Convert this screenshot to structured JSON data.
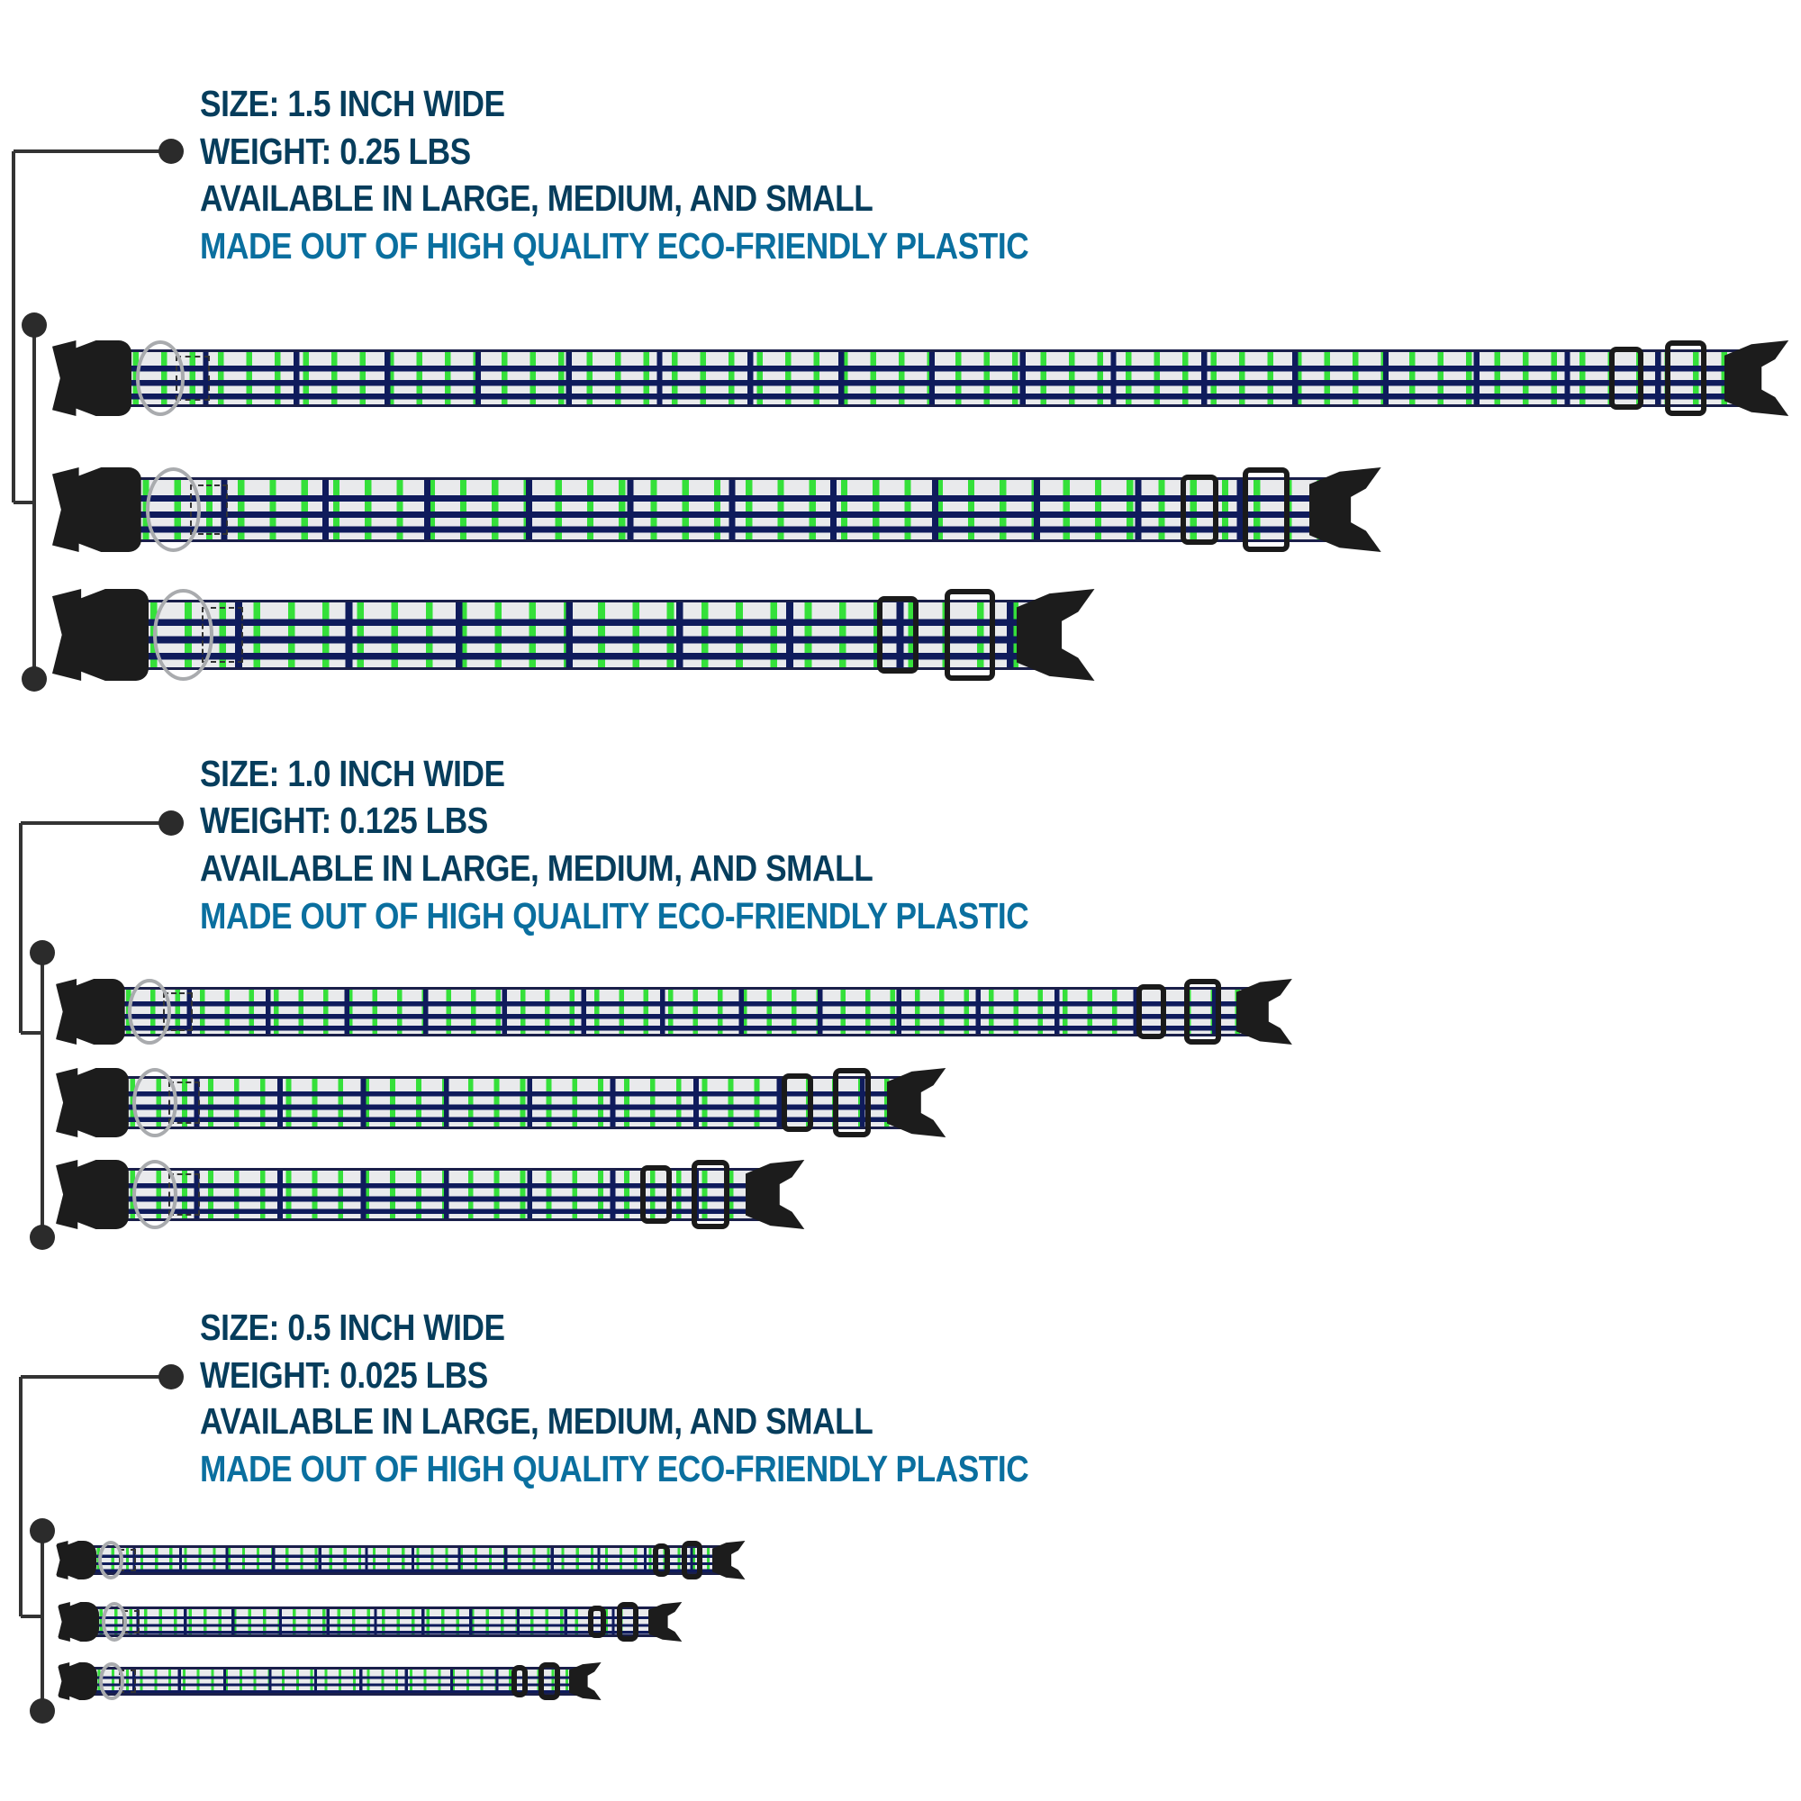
{
  "colors": {
    "heading": "#063d5c",
    "accent": "#0a6f9f",
    "strap_green": "#35e03a",
    "strap_navy": "#0f1b5c",
    "buckle": "#1c1c1c"
  },
  "sections": [
    {
      "lines": [
        "SIZE: 1.5 INCH WIDE",
        "WEIGHT: 0.25 LBS",
        "AVAILABLE IN LARGE, MEDIUM, AND SMALL",
        "MADE OUT OF HIGH QUALITY ECO-FRIENDLY PLASTIC"
      ],
      "collars": [
        "large",
        "medium",
        "small"
      ]
    },
    {
      "lines": [
        "SIZE: 1.0 INCH WIDE",
        "WEIGHT: 0.125 LBS",
        "AVAILABLE IN LARGE, MEDIUM, AND SMALL",
        "MADE OUT OF HIGH QUALITY ECO-FRIENDLY PLASTIC"
      ],
      "collars": [
        "large",
        "medium",
        "small"
      ]
    },
    {
      "lines": [
        "SIZE: 0.5 INCH WIDE",
        "WEIGHT: 0.025 LBS",
        "AVAILABLE IN LARGE, MEDIUM, AND SMALL",
        "MADE OUT OF HIGH QUALITY ECO-FRIENDLY PLASTIC"
      ],
      "collars": [
        "large",
        "medium",
        "small"
      ]
    }
  ]
}
